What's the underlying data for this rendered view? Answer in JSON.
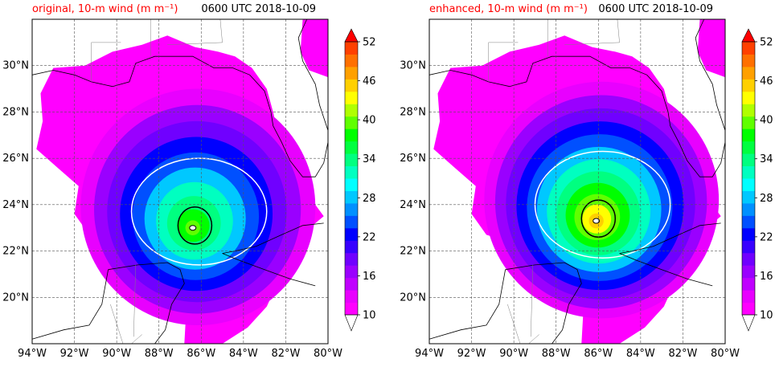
{
  "chart_data": [
    {
      "type": "heatmap",
      "title": "original, 10-m wind (m m⁻¹)",
      "time_label": "0600 UTC 2018-10-09",
      "x_ticks": [
        "94°W",
        "92°W",
        "90°W",
        "88°W",
        "86°W",
        "84°W",
        "82°W",
        "80°W"
      ],
      "y_ticks": [
        "20°N",
        "22°N",
        "24°N",
        "26°N",
        "28°N",
        "30°N"
      ],
      "xlim": [
        -94,
        -80
      ],
      "ylim": [
        18,
        32
      ],
      "grid": true,
      "colorbar": {
        "min": 10,
        "max": 52,
        "step": 3,
        "ticks": [
          "52",
          "46",
          "40",
          "34",
          "28",
          "22",
          "16",
          "10"
        ]
      },
      "storm_center": [
        -86.4,
        23.0
      ],
      "max_wind": 40
    },
    {
      "type": "heatmap",
      "title": "enhanced, 10-m wind (m m⁻¹)",
      "time_label": "0600 UTC 2018-10-09",
      "x_ticks": [
        "94°W",
        "92°W",
        "90°W",
        "88°W",
        "86°W",
        "84°W",
        "82°W",
        "80°W"
      ],
      "y_ticks": [
        "20°N",
        "22°N",
        "24°N",
        "26°N",
        "28°N",
        "30°N"
      ],
      "xlim": [
        -94,
        -80
      ],
      "ylim": [
        18,
        32
      ],
      "grid": true,
      "colorbar": {
        "min": 10,
        "max": 52,
        "step": 3,
        "ticks": [
          "52",
          "46",
          "40",
          "34",
          "28",
          "22",
          "16",
          "10"
        ]
      },
      "storm_center": [
        -86.1,
        23.3
      ],
      "max_wind": 46
    }
  ],
  "colors": {
    "title_accent": "#ff0000",
    "colormap": [
      "#ff00ff",
      "#e800ff",
      "#c000ff",
      "#9a00ff",
      "#7000ff",
      "#3800ff",
      "#0000ff",
      "#0050ff",
      "#0090ff",
      "#00c8ff",
      "#00ffff",
      "#00ffc0",
      "#00ff80",
      "#00ff40",
      "#00ff00",
      "#60ff00",
      "#b0ff00",
      "#ffff00",
      "#ffd000",
      "#ffa000",
      "#ff7000",
      "#ff4000",
      "#ff0000"
    ]
  }
}
